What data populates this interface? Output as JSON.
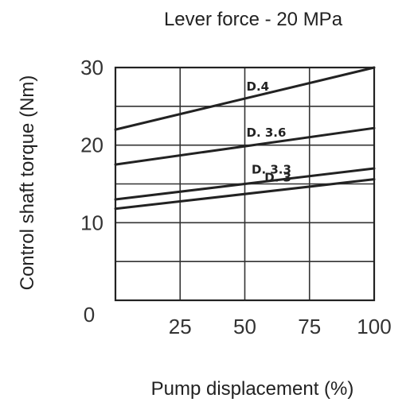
{
  "chart_data": {
    "type": "line",
    "title": "Lever force - 20 MPa",
    "xlabel": "Pump displacement (%)",
    "ylabel": "Control shaft torque (Nm)",
    "xlim": [
      0,
      100
    ],
    "ylim": [
      0,
      30
    ],
    "x_ticks": [
      "0",
      "25",
      "50",
      "75",
      "100"
    ],
    "y_ticks": [
      "10",
      "20",
      "30"
    ],
    "grid": true,
    "series": [
      {
        "name": "D.4",
        "x": [
          0,
          100
        ],
        "y": [
          22,
          30
        ]
      },
      {
        "name": "D. 3.6",
        "x": [
          0,
          100
        ],
        "y": [
          17.5,
          22.2
        ]
      },
      {
        "name": "D. 3.3",
        "x": [
          0,
          100
        ],
        "y": [
          13,
          17
        ]
      },
      {
        "name": "D. 3",
        "x": [
          0,
          100
        ],
        "y": [
          11.8,
          15.6
        ]
      }
    ]
  }
}
